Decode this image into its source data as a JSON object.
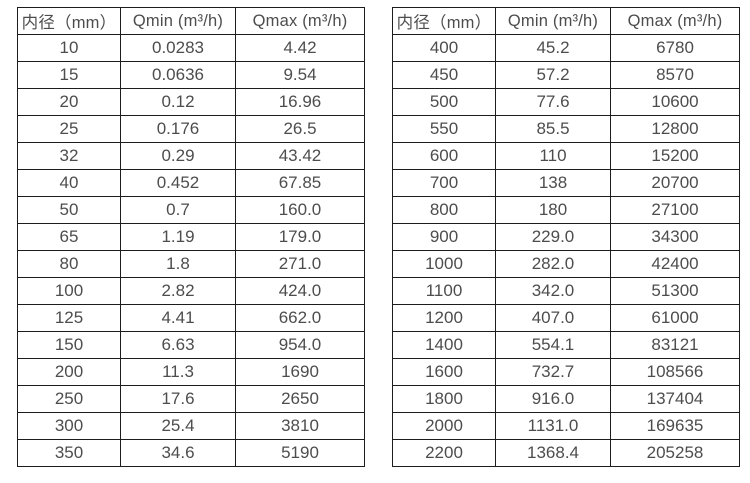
{
  "page": {
    "background_color": "#ffffff",
    "border_color": "#1c1c1c",
    "text_color": "#4d4d4d"
  },
  "tables": [
    {
      "name": "small-diameter-flow-table",
      "headers": [
        "内径（mm）",
        "Qmin (m³/h)",
        "Qmax (m³/h)"
      ],
      "rows": [
        [
          "10",
          "0.0283",
          "4.42"
        ],
        [
          "15",
          "0.0636",
          "9.54"
        ],
        [
          "20",
          "0.12",
          "16.96"
        ],
        [
          "25",
          "0.176",
          "26.5"
        ],
        [
          "32",
          "0.29",
          "43.42"
        ],
        [
          "40",
          "0.452",
          "67.85"
        ],
        [
          "50",
          "0.7",
          "160.0"
        ],
        [
          "65",
          "1.19",
          "179.0"
        ],
        [
          "80",
          "1.8",
          "271.0"
        ],
        [
          "100",
          "2.82",
          "424.0"
        ],
        [
          "125",
          "4.41",
          "662.0"
        ],
        [
          "150",
          "6.63",
          "954.0"
        ],
        [
          "200",
          "11.3",
          "1690"
        ],
        [
          "250",
          "17.6",
          "2650"
        ],
        [
          "300",
          "25.4",
          "3810"
        ],
        [
          "350",
          "34.6",
          "5190"
        ]
      ]
    },
    {
      "name": "large-diameter-flow-table",
      "headers": [
        "内径（mm）",
        "Qmin (m³/h)",
        "Qmax (m³/h)"
      ],
      "rows": [
        [
          "400",
          "45.2",
          "6780"
        ],
        [
          "450",
          "57.2",
          "8570"
        ],
        [
          "500",
          "77.6",
          "10600"
        ],
        [
          "550",
          "85.5",
          "12800"
        ],
        [
          "600",
          "110",
          "15200"
        ],
        [
          "700",
          "138",
          "20700"
        ],
        [
          "800",
          "180",
          "27100"
        ],
        [
          "900",
          "229.0",
          "34300"
        ],
        [
          "1000",
          "282.0",
          "42400"
        ],
        [
          "1100",
          "342.0",
          "51300"
        ],
        [
          "1200",
          "407.0",
          "61000"
        ],
        [
          "1400",
          "554.1",
          "83121"
        ],
        [
          "1600",
          "732.7",
          "108566"
        ],
        [
          "1800",
          "916.0",
          "137404"
        ],
        [
          "2000",
          "1131.0",
          "169635"
        ],
        [
          "2200",
          "1368.4",
          "205258"
        ]
      ]
    }
  ]
}
